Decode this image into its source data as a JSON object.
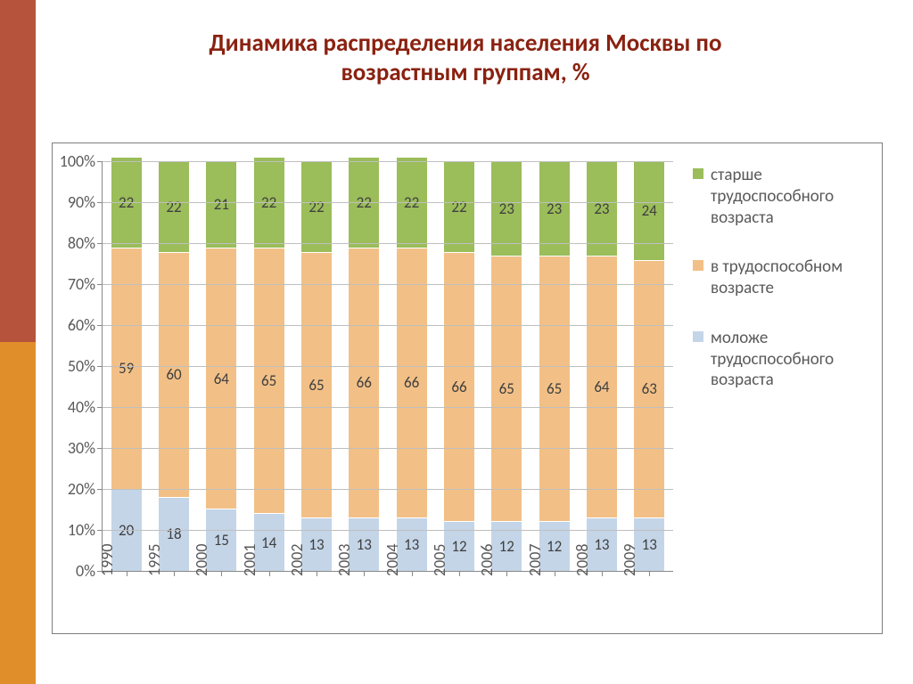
{
  "title": {
    "line1": "Динамика распределения населения Москвы по",
    "line2": "возрастным группам, %",
    "color": "#8a2110",
    "fontsize": 27
  },
  "sidebar": {
    "top_color": "#b5533c",
    "bottom_color": "#e08e2a"
  },
  "chart": {
    "type": "stacked-bar-100",
    "background_color": "#ffffff",
    "grid_color": "#bfbfbf",
    "axis_color": "#888888",
    "bar_width_ratio": 0.64,
    "ylim": [
      0,
      100
    ],
    "ytick_step": 10,
    "y_suffix": "%",
    "axis_label_color": "#595959",
    "axis_label_fontsize": 18,
    "value_label_fontsize": 17,
    "value_label_color": "#404040",
    "categories": [
      "1990",
      "1995",
      "2000",
      "2001",
      "2002",
      "2003",
      "2004",
      "2005",
      "2006",
      "2007",
      "2008",
      "2009"
    ],
    "series": [
      {
        "key": "younger",
        "label": "моложе трудоспособного возраста",
        "color": "#c4d5e8",
        "values": [
          20,
          18,
          15,
          14,
          13,
          13,
          13,
          12,
          12,
          12,
          13,
          13
        ]
      },
      {
        "key": "working",
        "label": "в трудоспособном возрасте",
        "color": "#f2c086",
        "values": [
          59,
          60,
          64,
          65,
          65,
          66,
          66,
          66,
          65,
          65,
          64,
          63
        ]
      },
      {
        "key": "older",
        "label": "старше трудоспособного возраста",
        "color": "#9bbd5a",
        "values": [
          22,
          22,
          21,
          22,
          22,
          22,
          22,
          22,
          23,
          23,
          23,
          24
        ]
      }
    ],
    "legend": {
      "position": "right",
      "order": [
        "older",
        "working",
        "younger"
      ],
      "fontsize": 19,
      "label_color": "#595959"
    }
  }
}
